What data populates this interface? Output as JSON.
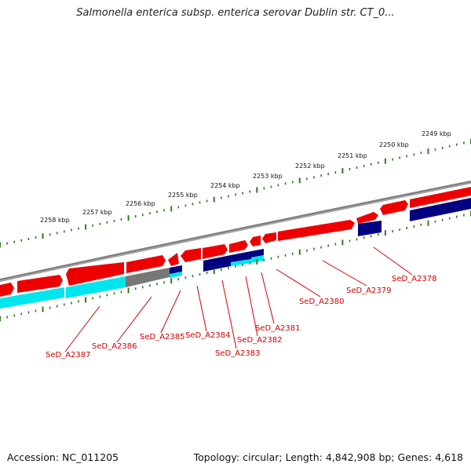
{
  "header": {
    "title": "Salmonella enterica subsp. enterica serovar Dublin str. CT_0..."
  },
  "footer": {
    "accession": "Accession: NC_011205",
    "stats": "Topology: circular; Length: 4,842,908 bp; Genes: 4,618"
  },
  "colors": {
    "forward_gene": "#ee0000",
    "reverse_gene": "#000080",
    "rna_gene": "#00e5ee",
    "other_feature": "#777777",
    "backbone": "#808080",
    "tick": "#2f7d1f",
    "label": "#d40000"
  },
  "scale": {
    "ticks": [
      "2258 kbp",
      "2257 kbp",
      "2256 kbp",
      "2255 kbp",
      "2254 kbp",
      "2253 kbp",
      "2252 kbp",
      "2251 kbp",
      "2250 kbp",
      "2249 kbp"
    ]
  },
  "gene_labels": [
    "SeD_A2387",
    "SeD_A2386",
    "SeD_A2385",
    "SeD_A2384",
    "SeD_A2383",
    "SeD_A2382",
    "SeD_A2381",
    "SeD_A2380",
    "SeD_A2379",
    "SeD_A2378"
  ]
}
